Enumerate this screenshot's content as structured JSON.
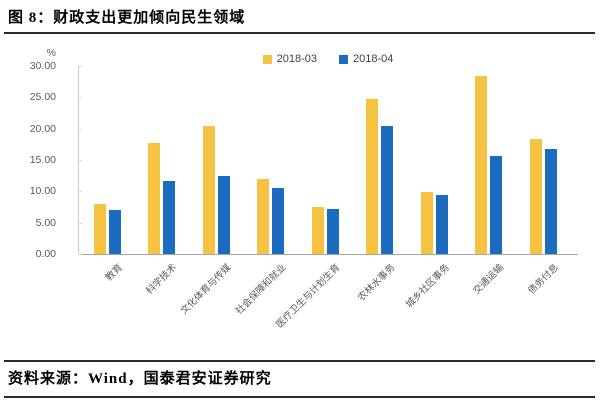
{
  "title": "图 8：财政支出更加倾向民生领域",
  "source_note": "资料来源：Wind，国泰君安证券研究",
  "chart_data": {
    "type": "bar",
    "title": "图 8：财政支出更加倾向民生领域",
    "y_unit": "%",
    "ylabel": "",
    "xlabel": "",
    "ylim": [
      0,
      30
    ],
    "ytick_step": 5,
    "yticks": [
      "30.00",
      "25.00",
      "20.00",
      "15.00",
      "10.00",
      "5.00",
      "0.00"
    ],
    "grid": false,
    "legend_position": "top-center",
    "categories": [
      "教育",
      "科学技术",
      "文化体育与传媒",
      "社会保障和就业",
      "医疗卫生与计划生育",
      "农林水事务",
      "城乡社区事务",
      "交通运输",
      "债务付息"
    ],
    "series": [
      {
        "name": "2018-03",
        "color": "#F5C242",
        "values": [
          8.0,
          17.7,
          20.4,
          11.9,
          7.5,
          24.7,
          9.9,
          28.4,
          18.4
        ]
      },
      {
        "name": "2018-04",
        "color": "#1B6CBE",
        "values": [
          7.0,
          11.6,
          12.5,
          10.6,
          7.2,
          20.4,
          9.4,
          15.6,
          16.7
        ]
      }
    ],
    "colors": {
      "series_2018_03": "#F5C242",
      "series_2018_04": "#1B6CBE"
    }
  }
}
